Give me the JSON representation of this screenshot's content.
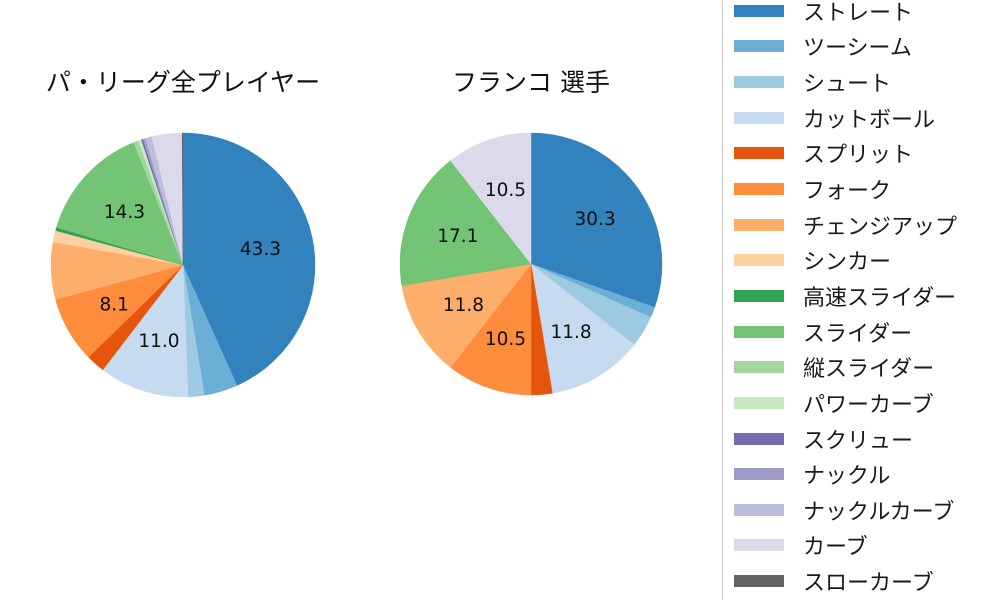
{
  "titles": {
    "left": "パ・リーグ全プレイヤー",
    "right": "フランコ 選手"
  },
  "chart_data": [
    {
      "type": "pie",
      "title": "パ・リーグ全プレイヤー",
      "start_angle_deg": 90,
      "direction": "clockwise",
      "legend_position": "right",
      "label_rule": "percent labels shown only for slices >= 8%",
      "slices": [
        {
          "name": "ストレート",
          "value": 43.3,
          "label": "43.3",
          "color": "#3182bd"
        },
        {
          "name": "ツーシーム",
          "value": 4.1,
          "label": "",
          "color": "#6baed6"
        },
        {
          "name": "シュート",
          "value": 2.0,
          "label": "",
          "color": "#9ecae1"
        },
        {
          "name": "カットボール",
          "value": 11.0,
          "label": "11.0",
          "color": "#c6dbef"
        },
        {
          "name": "スプリット",
          "value": 2.3,
          "label": "",
          "color": "#e6550d"
        },
        {
          "name": "フォーク",
          "value": 8.1,
          "label": "8.1",
          "color": "#fd8d3c"
        },
        {
          "name": "チェンジアップ",
          "value": 7.0,
          "label": "",
          "color": "#fdae6b"
        },
        {
          "name": "シンカー",
          "value": 1.4,
          "label": "",
          "color": "#fdd0a2"
        },
        {
          "name": "高速スライダー",
          "value": 0.4,
          "label": "",
          "color": "#31a354"
        },
        {
          "name": "スライダー",
          "value": 14.3,
          "label": "14.3",
          "color": "#74c476"
        },
        {
          "name": "縦スライダー",
          "value": 0.6,
          "label": "",
          "color": "#a1d99b"
        },
        {
          "name": "パワーカーブ",
          "value": 0.4,
          "label": "",
          "color": "#c7e9c0"
        },
        {
          "name": "スクリュー",
          "value": 0.2,
          "label": "",
          "color": "#756bb1"
        },
        {
          "name": "ナックル",
          "value": 0.3,
          "label": "",
          "color": "#9e9ac8"
        },
        {
          "name": "ナックルカーブ",
          "value": 0.8,
          "label": "",
          "color": "#bcbddc"
        },
        {
          "name": "カーブ",
          "value": 3.7,
          "label": "",
          "color": "#dadaeb"
        },
        {
          "name": "スローカーブ",
          "value": 0.1,
          "label": "",
          "color": "#636363"
        }
      ]
    },
    {
      "type": "pie",
      "title": "フランコ 選手",
      "start_angle_deg": 90,
      "direction": "clockwise",
      "legend_position": "right",
      "label_rule": "percent labels shown only for slices >= 8%",
      "slices": [
        {
          "name": "ストレート",
          "value": 30.3,
          "label": "30.3",
          "color": "#3182bd"
        },
        {
          "name": "ツーシーム",
          "value": 1.3,
          "label": "",
          "color": "#6baed6"
        },
        {
          "name": "シュート",
          "value": 3.9,
          "label": "",
          "color": "#9ecae1"
        },
        {
          "name": "カットボール",
          "value": 11.8,
          "label": "11.8",
          "color": "#c6dbef"
        },
        {
          "name": "スプリット",
          "value": 2.6,
          "label": "",
          "color": "#e6550d"
        },
        {
          "name": "フォーク",
          "value": 10.5,
          "label": "10.5",
          "color": "#fd8d3c"
        },
        {
          "name": "チェンジアップ",
          "value": 11.8,
          "label": "11.8",
          "color": "#fdae6b"
        },
        {
          "name": "スライダー",
          "value": 17.1,
          "label": "17.1",
          "color": "#74c476"
        },
        {
          "name": "カーブ",
          "value": 10.5,
          "label": "10.5",
          "color": "#dadaeb"
        }
      ]
    }
  ],
  "legend": {
    "items": [
      {
        "label": "ストレート",
        "color": "#3182bd"
      },
      {
        "label": "ツーシーム",
        "color": "#6baed6"
      },
      {
        "label": "シュート",
        "color": "#9ecae1"
      },
      {
        "label": "カットボール",
        "color": "#c6dbef"
      },
      {
        "label": "スプリット",
        "color": "#e6550d"
      },
      {
        "label": "フォーク",
        "color": "#fd8d3c"
      },
      {
        "label": "チェンジアップ",
        "color": "#fdae6b"
      },
      {
        "label": "シンカー",
        "color": "#fdd0a2"
      },
      {
        "label": "高速スライダー",
        "color": "#31a354"
      },
      {
        "label": "スライダー",
        "color": "#74c476"
      },
      {
        "label": "縦スライダー",
        "color": "#a1d99b"
      },
      {
        "label": "パワーカーブ",
        "color": "#c7e9c0"
      },
      {
        "label": "スクリュー",
        "color": "#756bb1"
      },
      {
        "label": "ナックル",
        "color": "#9e9ac8"
      },
      {
        "label": "ナックルカーブ",
        "color": "#bcbddc"
      },
      {
        "label": "カーブ",
        "color": "#dadaeb"
      },
      {
        "label": "スローカーブ",
        "color": "#636363"
      }
    ]
  }
}
